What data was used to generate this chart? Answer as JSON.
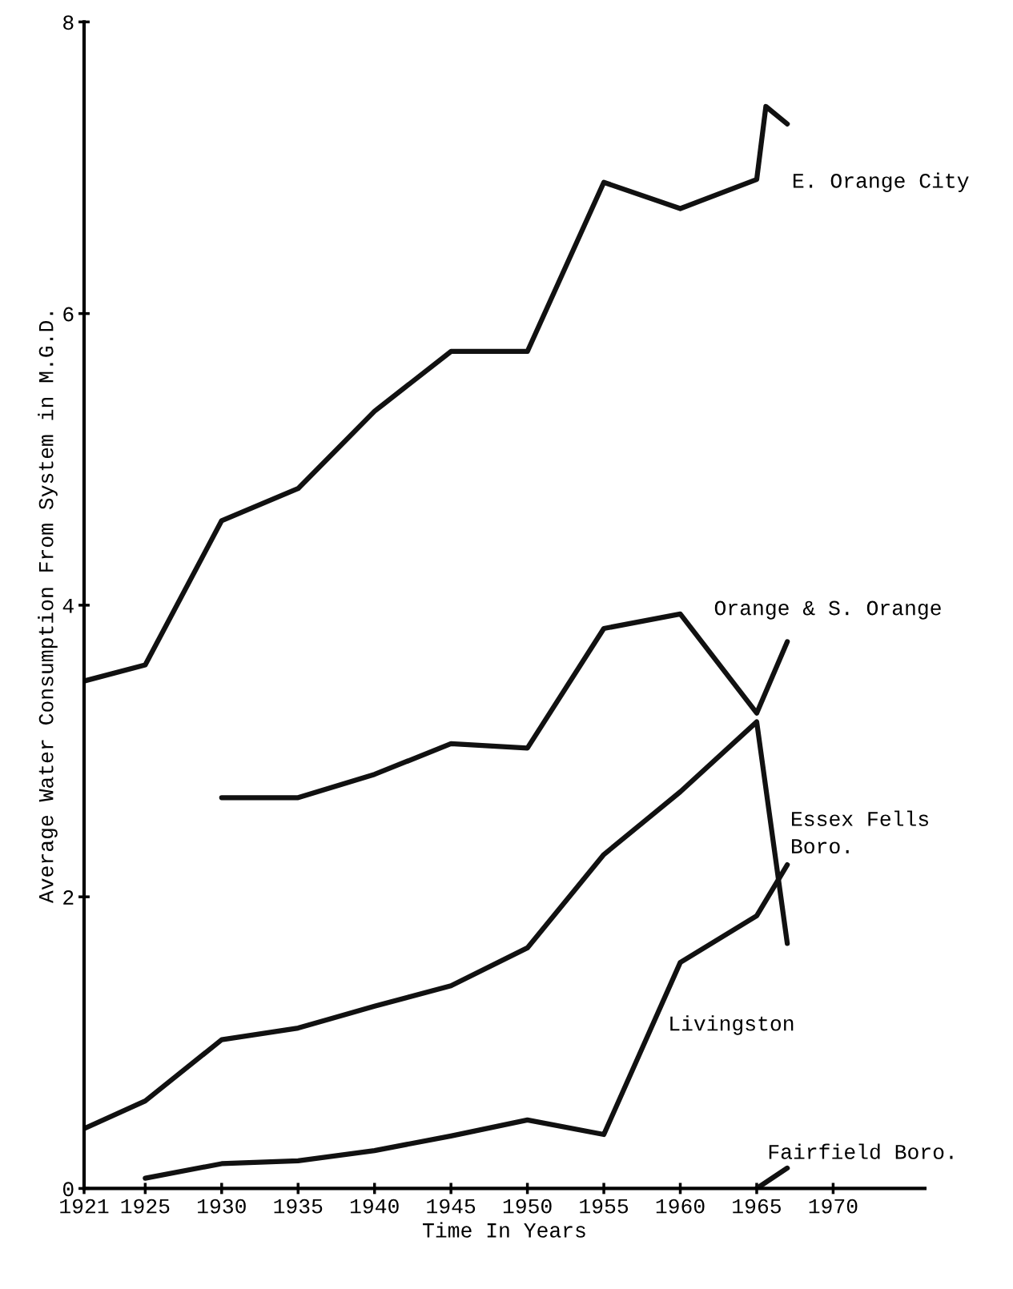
{
  "chart_data": {
    "type": "line",
    "xlabel": "Time In Years",
    "ylabel": "Average Water Consumption From System in M.G.D.",
    "xlim": [
      1921,
      1976
    ],
    "xticks": [
      1921,
      1925,
      1930,
      1935,
      1940,
      1945,
      1950,
      1955,
      1960,
      1965,
      1970
    ],
    "ylim": [
      0,
      8
    ],
    "yticks": [
      0,
      2,
      4,
      6,
      8
    ],
    "grid": false,
    "legend": false,
    "marker": "none",
    "line_style": "solid",
    "series": [
      {
        "name": "E. Orange City",
        "color": "#111111",
        "x": [
          1921,
          1925,
          1930,
          1935,
          1940,
          1945,
          1950,
          1955,
          1960,
          1965,
          1965.6,
          1967
        ],
        "values": [
          3.48,
          3.59,
          4.58,
          4.8,
          5.33,
          5.74,
          5.74,
          6.9,
          6.72,
          6.92,
          7.42,
          7.3
        ]
      },
      {
        "name": "Orange & S. Orange",
        "color": "#111111",
        "x": [
          1930,
          1935,
          1940,
          1945,
          1950,
          1955,
          1960,
          1965,
          1967
        ],
        "values": [
          2.68,
          2.68,
          2.84,
          3.05,
          3.02,
          3.84,
          3.94,
          3.26,
          3.75
        ]
      },
      {
        "name": "Essex Fells\nBoro.",
        "color": "#111111",
        "x": [
          1921,
          1925,
          1930,
          1935,
          1940,
          1945,
          1950,
          1955,
          1960,
          1965,
          1967
        ],
        "values": [
          0.41,
          0.6,
          1.02,
          1.1,
          1.25,
          1.39,
          1.65,
          2.29,
          2.72,
          3.2,
          1.68
        ]
      },
      {
        "name": "Livingston",
        "color": "#111111",
        "x": [
          1925,
          1930,
          1935,
          1940,
          1945,
          1950,
          1955,
          1960,
          1965,
          1967
        ],
        "values": [
          0.07,
          0.17,
          0.19,
          0.26,
          0.36,
          0.47,
          0.37,
          1.55,
          1.87,
          2.22
        ]
      },
      {
        "name": "Fairfield Boro.",
        "color": "#111111",
        "x": [
          1965,
          1967
        ],
        "values": [
          0.0,
          0.14
        ]
      }
    ]
  }
}
